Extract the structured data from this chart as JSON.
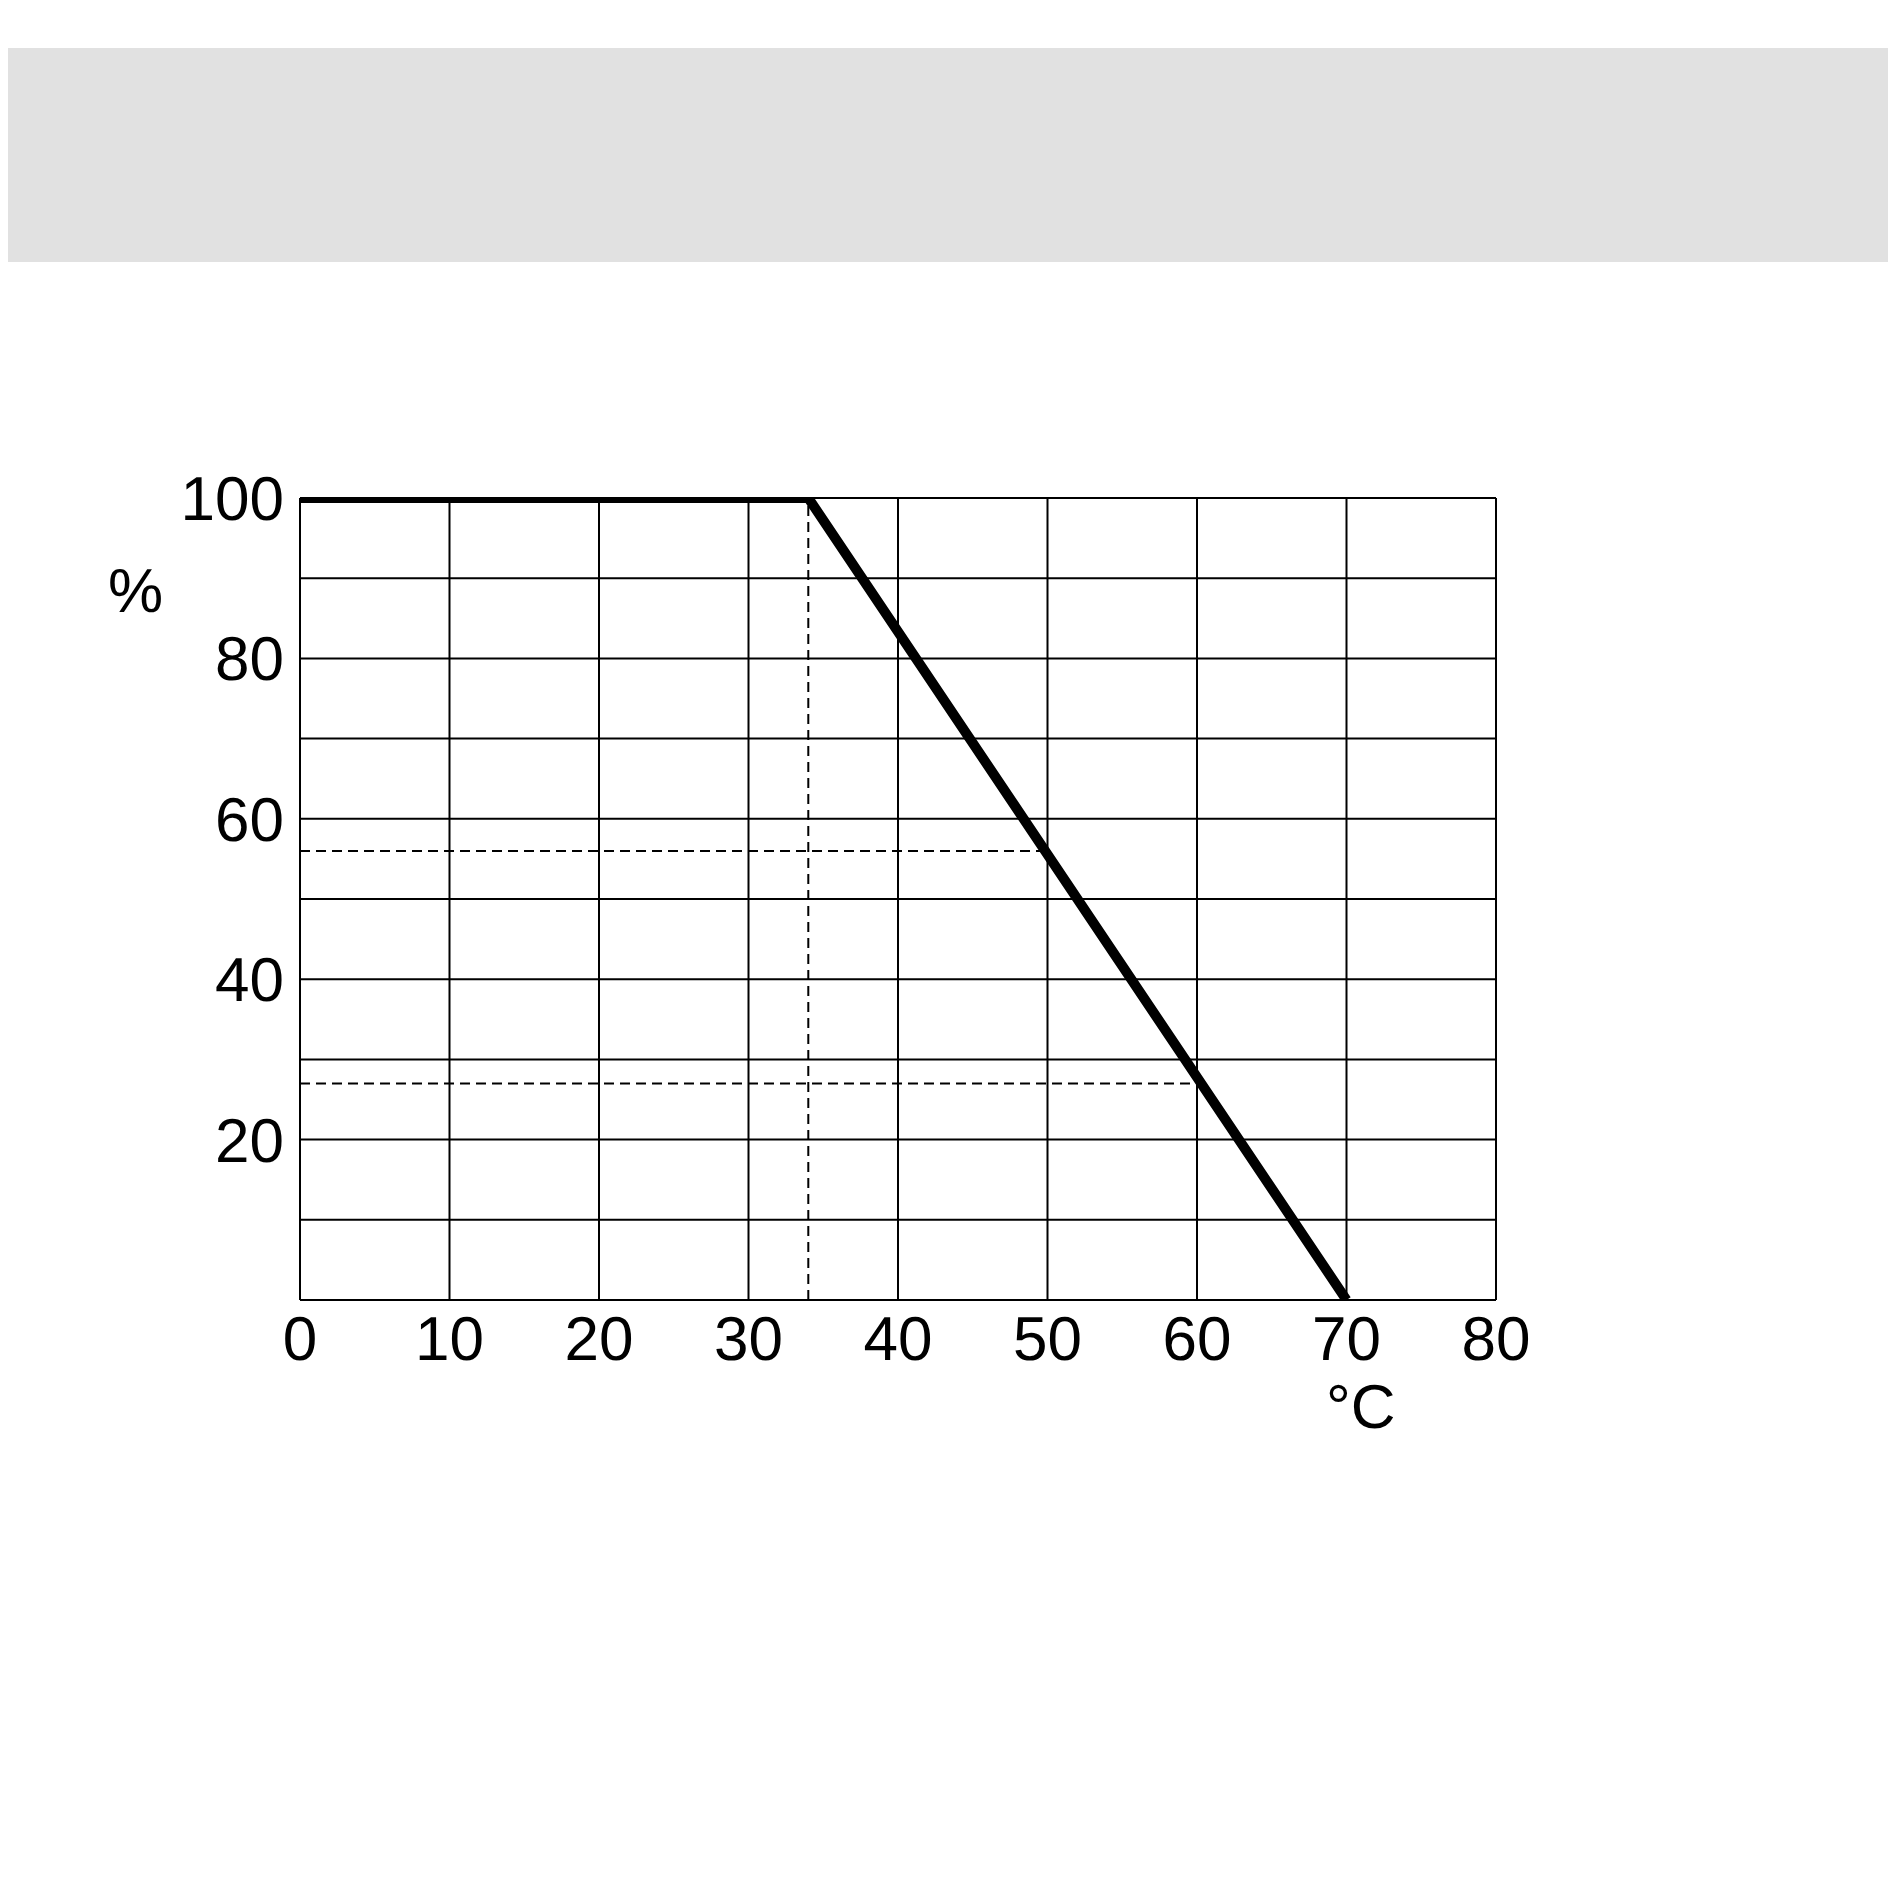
{
  "chart_data": {
    "type": "line",
    "xlabel": "°C",
    "ylabel": "%",
    "x": [
      0,
      34,
      70
    ],
    "series": [
      {
        "color": "#000000",
        "values": [
          100,
          100,
          0
        ]
      }
    ],
    "xlim": [
      0,
      80
    ],
    "xticks": [
      0,
      10,
      20,
      30,
      40,
      50,
      60,
      70,
      80
    ],
    "ylim": [
      0,
      100
    ],
    "yticks": [
      {
        "value": 10,
        "label": null
      },
      20,
      {
        "value": 30,
        "label": null
      },
      40,
      {
        "value": 50,
        "label": null
      },
      60,
      {
        "value": 70,
        "label": null
      },
      80,
      {
        "value": 90,
        "label": null
      },
      100
    ],
    "grid": true,
    "marker": "none",
    "line_style": "solid",
    "ref_lines": [
      {
        "axis": "x",
        "value": 34,
        "line_style": "dashed",
        "color": "#000000"
      },
      {
        "axis": "y",
        "value": 56,
        "line_style": "dashed",
        "color": "#000000"
      },
      {
        "axis": "y",
        "value": 27,
        "line_style": "dashed",
        "color": "#000000"
      }
    ]
  }
}
